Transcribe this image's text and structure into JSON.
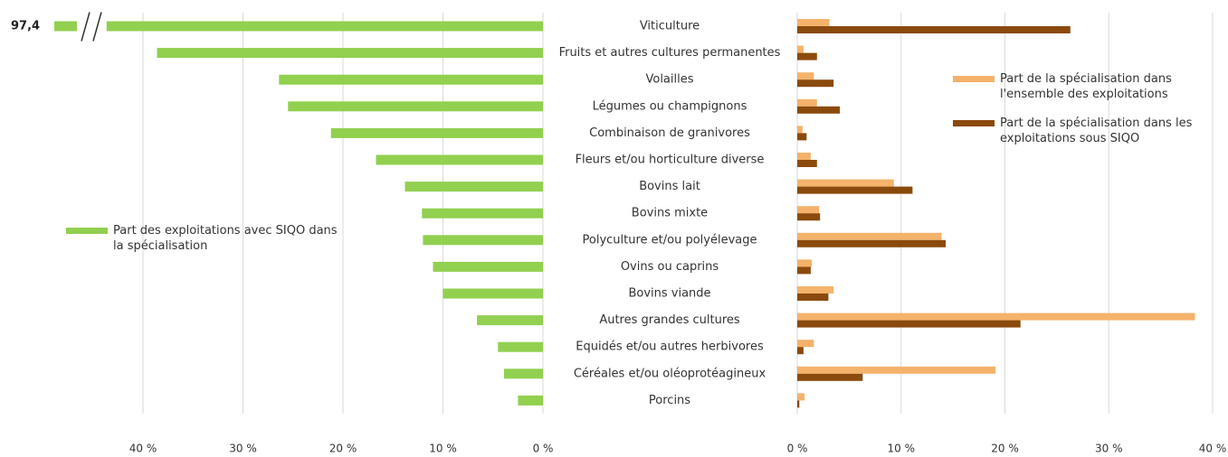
{
  "chart_data": [
    {
      "type": "bar",
      "orientation": "horizontal",
      "reversed": true,
      "axis_break": true,
      "categories": [
        "Viticulture",
        "Fruits et autres cultures permanentes",
        "Volailles",
        "Légumes ou champignons",
        "Combinaison de granivores",
        "Fleurs et/ou horticulture diverse",
        "Bovins lait",
        "Bovins mixte",
        "Polyculture et/ou polyélevage",
        "Ovins ou caprins",
        "Bovins viande",
        "Autres grandes cultures",
        "Equidés et/ou autres herbivores",
        "Céréales et/ou oléoprotéagineux",
        "Porcins"
      ],
      "series": [
        {
          "name": "Part des exploitations avec SIQO dans la spécialisation",
          "color": "#92d050",
          "values": [
            97.4,
            38.6,
            26.4,
            25.5,
            21.2,
            16.7,
            13.8,
            12.1,
            12.0,
            11.0,
            10.0,
            6.6,
            4.5,
            3.9,
            2.5
          ],
          "value_labels": [
            "97,4",
            null,
            null,
            null,
            null,
            null,
            null,
            null,
            null,
            null,
            null,
            null,
            null,
            null,
            null
          ]
        }
      ],
      "xlim": [
        0,
        44
      ],
      "xticks": [
        {
          "value": 0,
          "label": "0 %"
        },
        {
          "value": 10,
          "label": "10 %"
        },
        {
          "value": 20,
          "label": "20 %"
        },
        {
          "value": 30,
          "label": "30 %"
        },
        {
          "value": 40,
          "label": "40 %"
        }
      ],
      "grid": true
    },
    {
      "type": "bar",
      "orientation": "horizontal",
      "series": [
        {
          "name": "Part de la spécialisation dans l'ensemble des exploitations",
          "color": "#f4b26b",
          "values": [
            3.1,
            0.6,
            1.6,
            1.9,
            0.5,
            1.3,
            9.3,
            2.1,
            13.9,
            1.4,
            3.5,
            38.3,
            1.6,
            19.1,
            0.7
          ]
        },
        {
          "name": "Part de la spécialisation dans les exploitations sous SIQO",
          "color": "#8b4a0d",
          "values": [
            26.3,
            1.9,
            3.5,
            4.1,
            0.9,
            1.9,
            11.1,
            2.2,
            14.3,
            1.3,
            3.0,
            21.5,
            0.6,
            6.3,
            0.2
          ]
        }
      ],
      "xlim": [
        0,
        40
      ],
      "xticks": [
        {
          "value": 0,
          "label": "0 %"
        },
        {
          "value": 10,
          "label": "10 %"
        },
        {
          "value": 20,
          "label": "20 %"
        },
        {
          "value": 30,
          "label": "30 %"
        },
        {
          "value": 40,
          "label": "40 %"
        }
      ],
      "grid": true
    }
  ]
}
